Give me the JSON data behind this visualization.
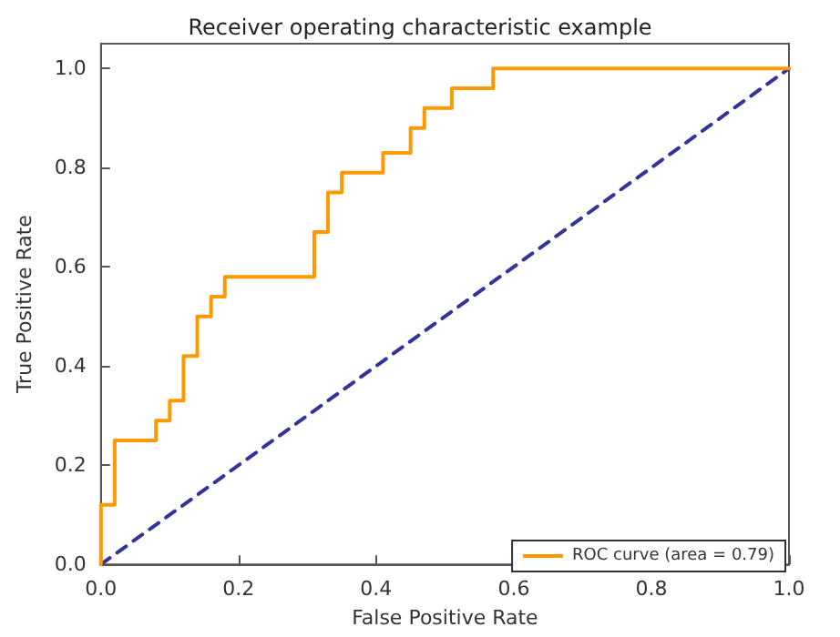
{
  "chart_data": {
    "type": "step",
    "title": "Receiver operating characteristic example",
    "xlabel": "False Positive Rate",
    "ylabel": "True Positive Rate",
    "series": [
      {
        "name": "ROC curve (area = 0.79)",
        "color": "#ff9900",
        "line_style": "solid",
        "x": [
          0,
          0,
          0.02,
          0.08,
          0.1,
          0.12,
          0.14,
          0.16,
          0.18,
          0.31,
          0.33,
          0.35,
          0.41,
          0.45,
          0.47,
          0.51,
          0.57,
          1.0
        ],
        "values": [
          0,
          0.12,
          0.25,
          0.29,
          0.33,
          0.42,
          0.5,
          0.54,
          0.58,
          0.67,
          0.75,
          0.79,
          0.83,
          0.88,
          0.92,
          0.96,
          1.0,
          1.0
        ]
      },
      {
        "type": "line",
        "color": "#333399",
        "line_style": "dashed",
        "x": [
          0,
          1
        ],
        "values": [
          0,
          1
        ]
      }
    ],
    "xlim": [
      0,
      1
    ],
    "ylim": [
      0,
      1.05
    ],
    "xticks": [
      {
        "value": 0,
        "label": "0.0"
      },
      {
        "value": 0.2,
        "label": "0.2"
      },
      {
        "value": 0.4,
        "label": "0.4"
      },
      {
        "value": 0.6,
        "label": "0.6"
      },
      {
        "value": 0.8,
        "label": "0.8"
      },
      {
        "value": 1,
        "label": "1.0"
      }
    ],
    "yticks": [
      {
        "value": 0,
        "label": "0.0"
      },
      {
        "value": 0.2,
        "label": "0.2"
      },
      {
        "value": 0.4,
        "label": "0.4"
      },
      {
        "value": 0.6,
        "label": "0.6"
      },
      {
        "value": 0.8,
        "label": "0.8"
      },
      {
        "value": 1,
        "label": "1.0"
      }
    ],
    "grid": false,
    "legend": "bottom right",
    "marker": "none"
  }
}
